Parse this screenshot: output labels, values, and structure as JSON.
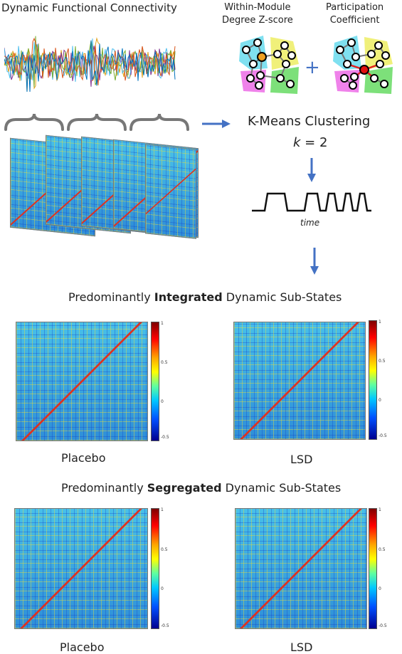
{
  "top": {
    "dfc_title": "Dynamic Functional Connectivity",
    "wmd_title": "Within-Module\nDegree Z-score",
    "pc_title": "Participation\nCoefficient",
    "plus": "+",
    "kmeans": "K-Means Clustering",
    "k_var": "k",
    "k_eq": " = 2",
    "time_label": "time"
  },
  "integrated": {
    "prefix": "Predominantly ",
    "bold": "Integrated",
    "suffix": " Dynamic Sub-States",
    "left_label": "Placebo",
    "right_label": "LSD"
  },
  "segregated": {
    "prefix": "Predominantly ",
    "bold": "Segregated",
    "suffix": " Dynamic Sub-States",
    "left_label": "Placebo",
    "right_label": "LSD"
  },
  "colorbar_ticks": [
    "1",
    "0.5",
    "0",
    "-0.5"
  ],
  "colors": {
    "arrow": "#4472c4",
    "brace": "#777777",
    "text": "#222222"
  }
}
